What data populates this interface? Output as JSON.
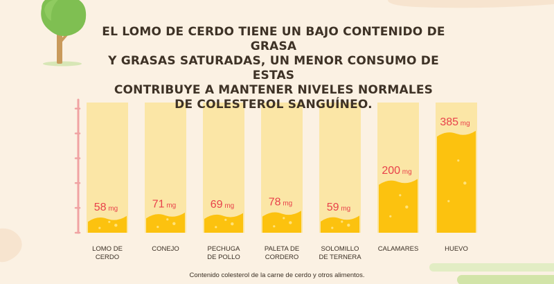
{
  "title_lines": [
    "EL LOMO DE CERDO TIENE UN BAJO CONTENIDO DE GRASA",
    "Y GRASAS SATURADAS, UN MENOR CONSUMO DE ESTAS",
    "CONTRIBUYE A MANTENER NIVELES NORMALES",
    "DE COLESTEROL SANGUÍNEO."
  ],
  "caption": "Contenido colesterol de la carne de cerdo y otros alimentos.",
  "colors": {
    "background": "#fbf1e3",
    "bar_track": "#fbe6a6",
    "bar_fill": "#fcc20f",
    "bubble": "#ffe27a",
    "axis": "#f0a3a3",
    "value_text": "#e8414a",
    "tree_leaves": "#7fbf52",
    "tree_trunk": "#c99a5b",
    "ground": "#d7e6b6"
  },
  "chart_data": {
    "type": "bar",
    "categories": [
      [
        "LOMO DE",
        "CERDO"
      ],
      [
        "CONEJO"
      ],
      [
        "PECHUGA",
        "DE POLLO"
      ],
      [
        "PALETA DE",
        "CORDERO"
      ],
      [
        "SOLOMILLO",
        "DE TERNERA"
      ],
      [
        "CALAMARES"
      ],
      [
        "HUEVO"
      ]
    ],
    "values": [
      58,
      71,
      69,
      78,
      59,
      200,
      385
    ],
    "value_labels": [
      "58",
      "71",
      "69",
      "78",
      "59",
      "200",
      "385"
    ],
    "unit": "mg",
    "ylim": [
      0,
      500
    ],
    "grid": false
  }
}
